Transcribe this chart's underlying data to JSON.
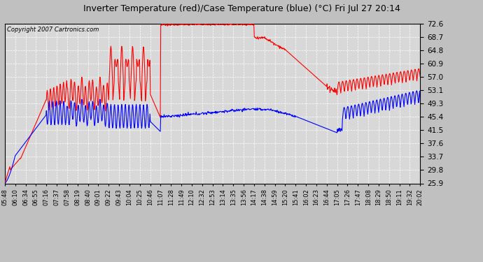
{
  "title": "Inverter Temperature (red)/Case Temperature (blue) (°C) Fri Jul 27 20:14",
  "copyright": "Copyright 2007 Cartronics.com",
  "yticks": [
    25.9,
    29.8,
    33.7,
    37.6,
    41.5,
    45.4,
    49.3,
    53.1,
    57.0,
    60.9,
    64.8,
    68.7,
    72.6
  ],
  "ylim": [
    25.9,
    72.6
  ],
  "xtick_labels": [
    "05:48",
    "06:10",
    "06:34",
    "06:55",
    "07:16",
    "07:37",
    "07:58",
    "08:19",
    "08:40",
    "09:01",
    "09:22",
    "09:43",
    "10:04",
    "10:25",
    "10:46",
    "11:07",
    "11:28",
    "11:49",
    "12:10",
    "12:32",
    "12:53",
    "13:14",
    "13:35",
    "13:56",
    "14:17",
    "14:38",
    "14:59",
    "15:20",
    "15:41",
    "16:02",
    "16:23",
    "16:44",
    "17:05",
    "17:26",
    "17:47",
    "18:08",
    "18:29",
    "18:50",
    "19:11",
    "19:32",
    "20:02"
  ],
  "bg_color": "#c0c0c0",
  "plot_bg": "#d8d8d8",
  "grid_color": "#ffffff",
  "title_color": "#000000",
  "red_color": "#ff0000",
  "blue_color": "#0000ff",
  "linewidth": 0.8
}
